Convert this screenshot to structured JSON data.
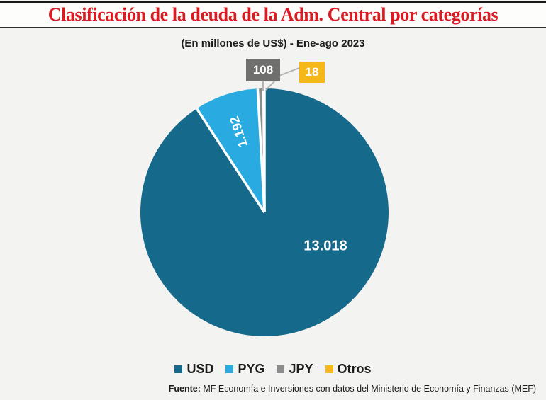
{
  "header": {
    "title": "Clasificación de la deuda de la Adm. Central por categorías"
  },
  "subtitle": "(En millones de US$) - Ene-ago 2023",
  "source": {
    "prefix": "Fuente:",
    "text": " MF Economía e Inversiones con datos del Ministerio de Economía y Finanzas (MEF)"
  },
  "colors": {
    "background": "#f3f3f1",
    "title_red": "#dc1a21",
    "slice_border": "#ffffff",
    "leader_line": "#b5b5b5"
  },
  "chart_data": {
    "type": "pie",
    "title": "Clasificación de la deuda de la Adm. Central por categorías",
    "subtitle": "(En millones de US$) - Ene-ago 2023",
    "unit": "millones de US$",
    "period": "Ene-ago 2023",
    "direction": "clockwise",
    "start_angle_deg": 0,
    "legend_position": "bottom",
    "total": 14336,
    "slices": [
      {
        "label": "USD",
        "value": 13018,
        "display": "13.018",
        "color": "#15698b",
        "label_style": "inside"
      },
      {
        "label": "PYG",
        "value": 1192,
        "display": "1.192",
        "color": "#29abe2",
        "label_style": "inside-rotated"
      },
      {
        "label": "JPY",
        "value": 108,
        "display": "108",
        "color": "#8c8c8c",
        "callout_color": "#6f6f6e",
        "label_style": "callout"
      },
      {
        "label": "Otros",
        "value": 18,
        "display": "18",
        "color": "#f6b719",
        "callout_color": "#f6b719",
        "label_style": "callout"
      }
    ]
  }
}
